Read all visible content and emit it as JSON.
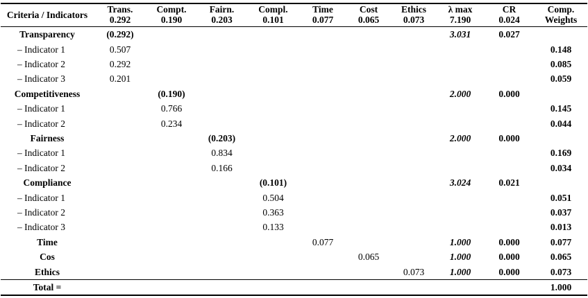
{
  "table": {
    "first_column_header": "Criteria / Indicators",
    "columns": [
      {
        "line1": "Trans.",
        "line2": "0.292"
      },
      {
        "line1": "Compt.",
        "line2": "0.190"
      },
      {
        "line1": "Fairn.",
        "line2": "0.203"
      },
      {
        "line1": "Compl.",
        "line2": "0.101"
      },
      {
        "line1": "Time",
        "line2": "0.077"
      },
      {
        "line1": "Cost",
        "line2": "0.065"
      },
      {
        "line1": "Ethics",
        "line2": "0.073"
      },
      {
        "line1": "λ max",
        "line2": "7.190"
      },
      {
        "line1": "CR",
        "line2": "0.024"
      },
      {
        "line1": "Comp.",
        "line2": "Weights"
      }
    ],
    "rows": [
      {
        "type": "criterion",
        "label": "Transparency",
        "cells": [
          "(0.292)",
          "",
          "",
          "",
          "",
          "",
          "",
          "3.031",
          "0.027",
          ""
        ]
      },
      {
        "type": "indicator",
        "label": "– Indicator 1",
        "cells": [
          "0.507",
          "",
          "",
          "",
          "",
          "",
          "",
          "",
          "",
          "0.148"
        ]
      },
      {
        "type": "indicator",
        "label": "– Indicator 2",
        "cells": [
          "0.292",
          "",
          "",
          "",
          "",
          "",
          "",
          "",
          "",
          "0.085"
        ]
      },
      {
        "type": "indicator",
        "label": "– Indicator 3",
        "cells": [
          "0.201",
          "",
          "",
          "",
          "",
          "",
          "",
          "",
          "",
          "0.059"
        ]
      },
      {
        "type": "criterion",
        "label": "Competitiveness",
        "cells": [
          "",
          "(0.190)",
          "",
          "",
          "",
          "",
          "",
          "2.000",
          "0.000",
          ""
        ]
      },
      {
        "type": "indicator",
        "label": "– Indicator 1",
        "cells": [
          "",
          "0.766",
          "",
          "",
          "",
          "",
          "",
          "",
          "",
          "0.145"
        ]
      },
      {
        "type": "indicator",
        "label": "– Indicator 2",
        "cells": [
          "",
          "0.234",
          "",
          "",
          "",
          "",
          "",
          "",
          "",
          "0.044"
        ]
      },
      {
        "type": "criterion",
        "label": "Fairness",
        "cells": [
          "",
          "",
          "(0.203)",
          "",
          "",
          "",
          "",
          "2.000",
          "0.000",
          ""
        ]
      },
      {
        "type": "indicator",
        "label": "– Indicator 1",
        "cells": [
          "",
          "",
          "0.834",
          "",
          "",
          "",
          "",
          "",
          "",
          "0.169"
        ]
      },
      {
        "type": "indicator",
        "label": "– Indicator 2",
        "cells": [
          "",
          "",
          "0.166",
          "",
          "",
          "",
          "",
          "",
          "",
          "0.034"
        ]
      },
      {
        "type": "criterion",
        "label": "Compliance",
        "cells": [
          "",
          "",
          "",
          "(0.101)",
          "",
          "",
          "",
          "3.024",
          "0.021",
          ""
        ]
      },
      {
        "type": "indicator",
        "label": "– Indicator 1",
        "cells": [
          "",
          "",
          "",
          "0.504",
          "",
          "",
          "",
          "",
          "",
          "0.051"
        ]
      },
      {
        "type": "indicator",
        "label": "– Indicator 2",
        "cells": [
          "",
          "",
          "",
          "0.363",
          "",
          "",
          "",
          "",
          "",
          "0.037"
        ]
      },
      {
        "type": "indicator",
        "label": "– Indicator 3",
        "cells": [
          "",
          "",
          "",
          "0.133",
          "",
          "",
          "",
          "",
          "",
          "0.013"
        ]
      },
      {
        "type": "single",
        "label": "Time",
        "cells": [
          "",
          "",
          "",
          "",
          "0.077",
          "",
          "",
          "1.000",
          "0.000",
          "0.077"
        ]
      },
      {
        "type": "single",
        "label": "Cos",
        "cells": [
          "",
          "",
          "",
          "",
          "",
          "0.065",
          "",
          "1.000",
          "0.000",
          "0.065"
        ]
      },
      {
        "type": "single",
        "label": "Ethics",
        "cells": [
          "",
          "",
          "",
          "",
          "",
          "",
          "0.073",
          "1.000",
          "0.000",
          "0.073"
        ]
      },
      {
        "type": "total",
        "label": "Total =",
        "cells": [
          "",
          "",
          "",
          "",
          "",
          "",
          "",
          "",
          "",
          "1.000"
        ]
      }
    ]
  }
}
